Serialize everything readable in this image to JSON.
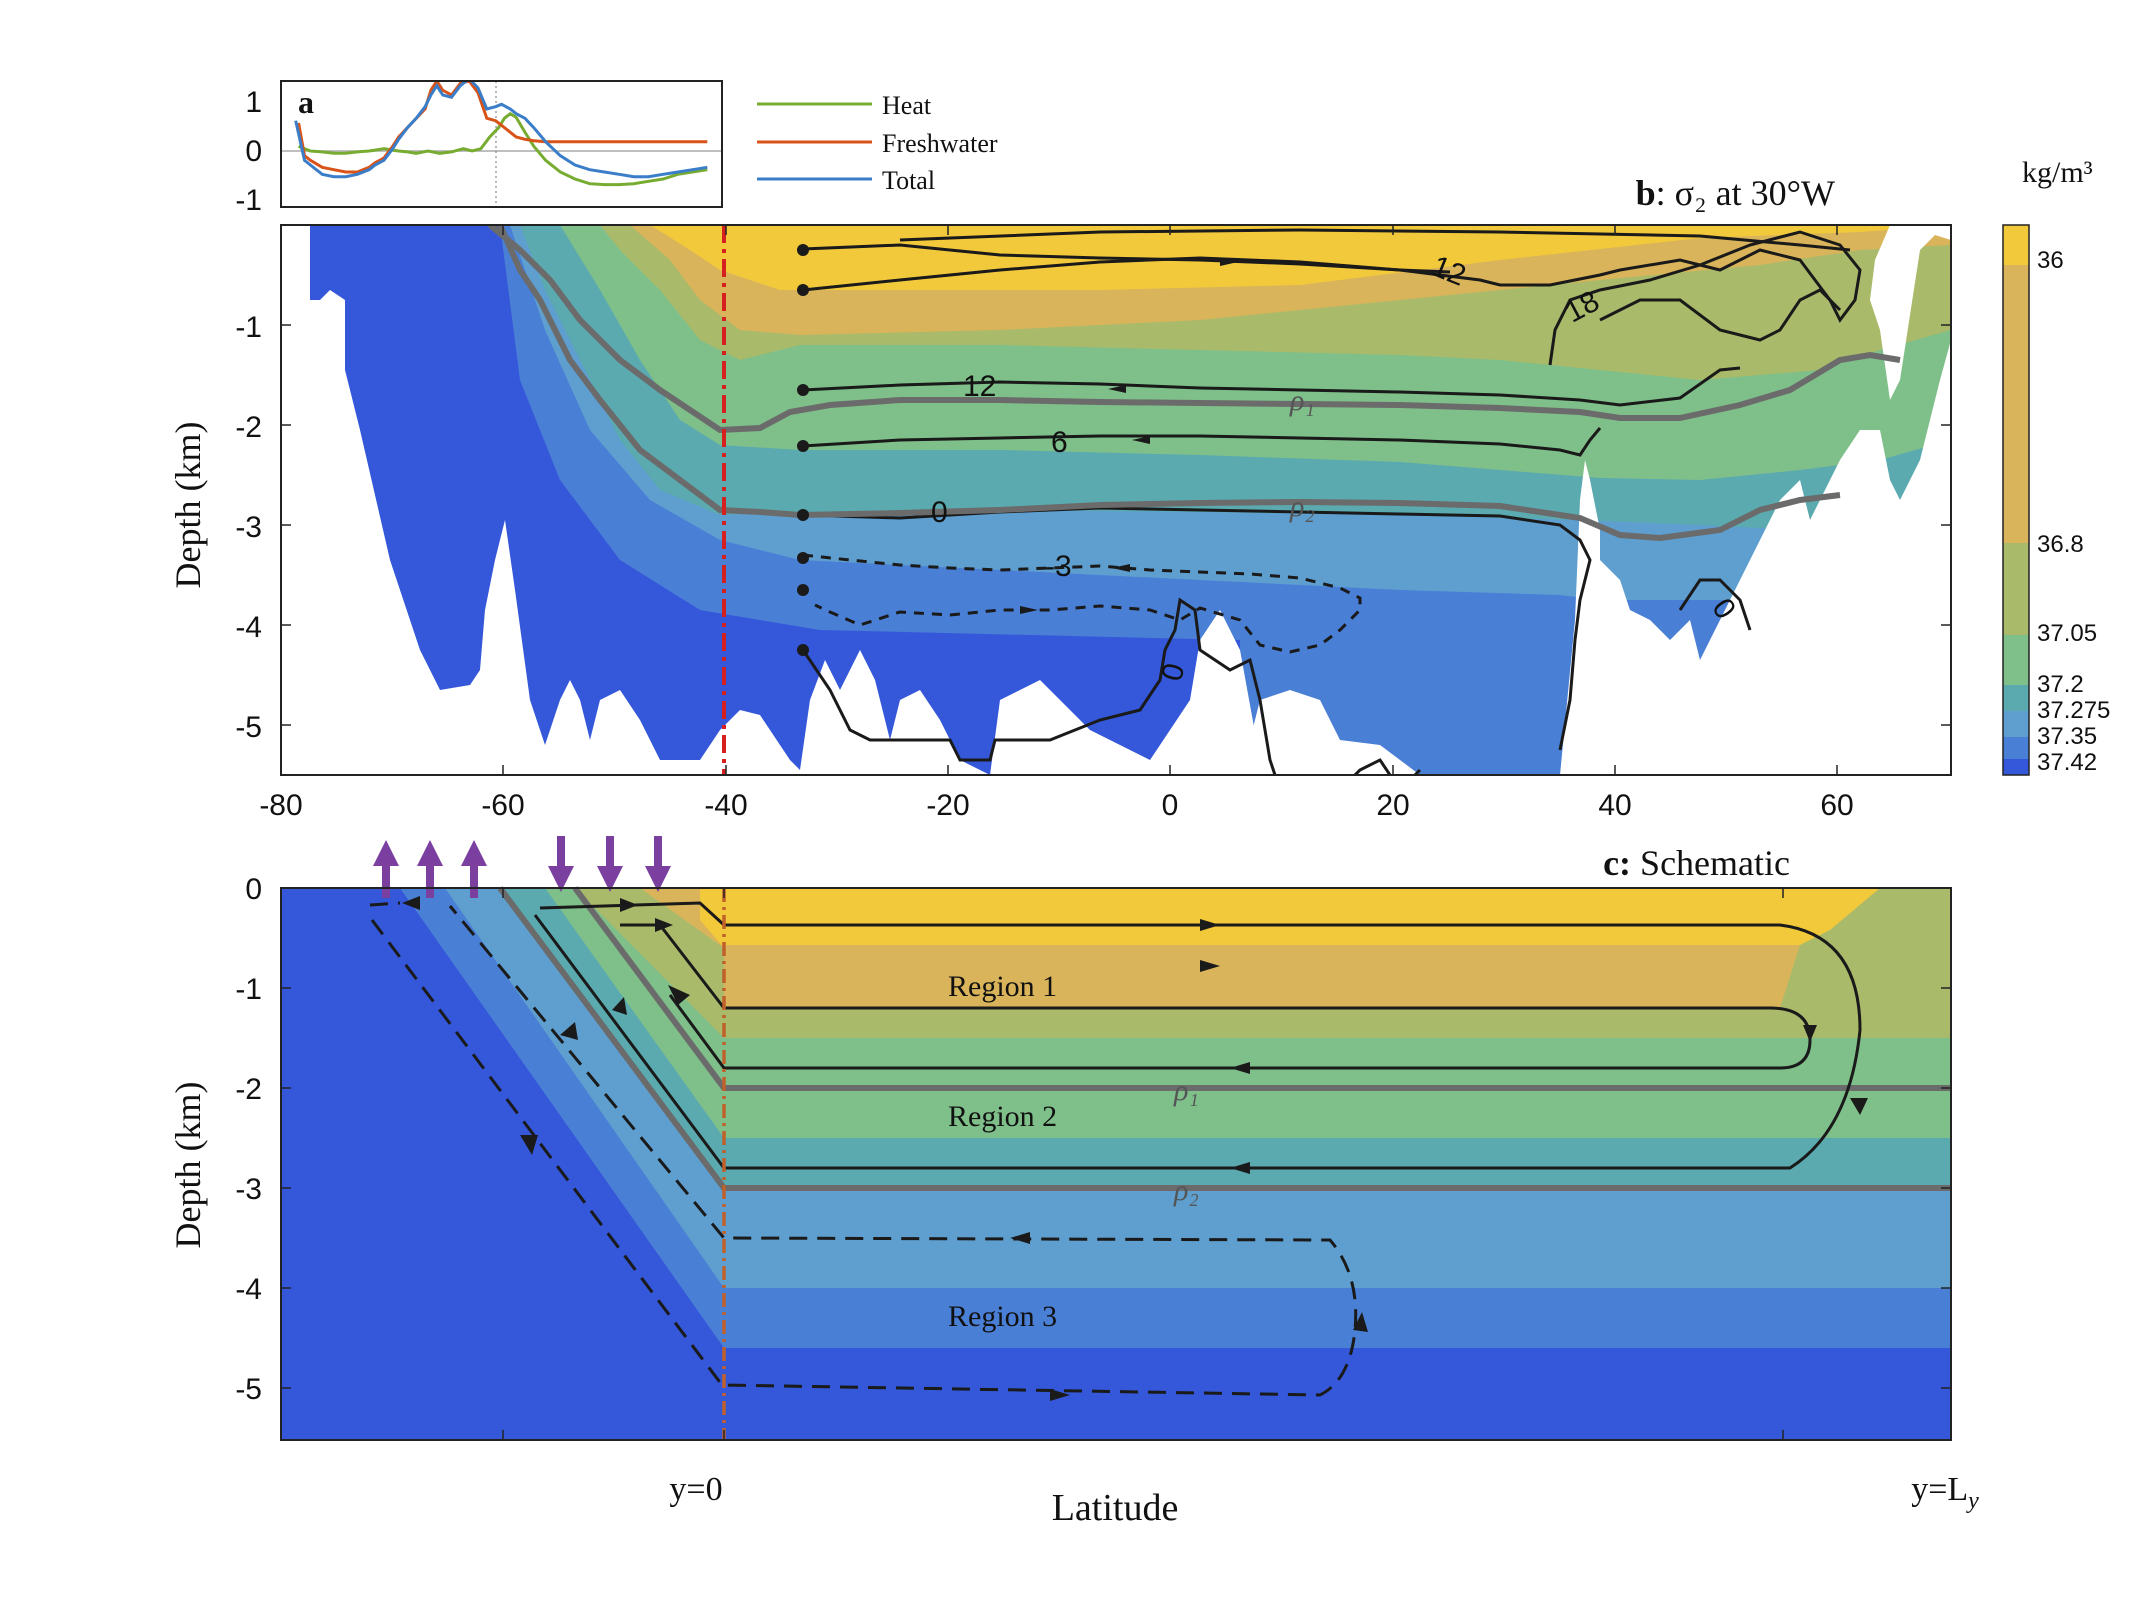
{
  "colors": {
    "heat": "#77AC30",
    "freshwater": "#D95319",
    "total": "#3A7DC9",
    "dashed_outline": "#1a1a1a",
    "contour": "#1a1a1a",
    "isopycnal": "#6b6b6b",
    "equator_marker": "#d62020",
    "schematic_marker": "#c0602a",
    "forcing_arrows": "#7b3fa0",
    "density_palette": [
      "#F2C93B",
      "#D9B45A",
      "#A9BB6A",
      "#7FBF8A",
      "#5AAAB0",
      "#5E9FD0",
      "#4A7FD6",
      "#3558DA"
    ]
  },
  "chart_data": [
    {
      "panel": "a",
      "type": "line",
      "label": "a",
      "x_domain": [
        -80,
        70
      ],
      "ylim": [
        -1.3,
        1.4
      ],
      "yticks": [
        "1",
        "0",
        "-1"
      ],
      "zero_line": true,
      "series": [
        {
          "name": "Heat",
          "color_key": "heat",
          "x": [
            -74,
            -72,
            -70,
            -66,
            -62,
            -58,
            -54,
            -50,
            -48,
            -45,
            -42,
            -40,
            -37,
            -34,
            -30,
            -26,
            -22,
            -18,
            -15,
            -12,
            -9,
            -6,
            -4,
            -2,
            0,
            3,
            6,
            10,
            15,
            20,
            25,
            30,
            35,
            40,
            45,
            50,
            55,
            60,
            65
          ],
          "y": [
            0.0,
            -0.05,
            -0.1,
            -0.12,
            -0.15,
            -0.15,
            -0.12,
            -0.1,
            -0.08,
            -0.05,
            -0.08,
            -0.1,
            -0.12,
            -0.15,
            -0.1,
            -0.15,
            -0.12,
            -0.05,
            -0.1,
            -0.05,
            0.2,
            0.4,
            0.6,
            0.7,
            0.62,
            0.3,
            0.0,
            -0.3,
            -0.55,
            -0.7,
            -0.8,
            -0.82,
            -0.82,
            -0.8,
            -0.75,
            -0.7,
            -0.6,
            -0.55,
            -0.5
          ]
        },
        {
          "name": "Freshwater",
          "color_key": "freshwater",
          "x": [
            -74,
            -72,
            -70,
            -66,
            -62,
            -58,
            -54,
            -50,
            -48,
            -45,
            -42,
            -40,
            -37,
            -34,
            -31,
            -29,
            -27,
            -25,
            -22,
            -19,
            -16,
            -13,
            -10,
            -7,
            -5,
            -2,
            0,
            3,
            6,
            10,
            15,
            20,
            25,
            30,
            35,
            40,
            45,
            50,
            55,
            60,
            65
          ],
          "y": [
            0.5,
            -0.2,
            -0.3,
            -0.45,
            -0.5,
            -0.55,
            -0.55,
            -0.45,
            -0.35,
            -0.25,
            0.0,
            0.2,
            0.4,
            0.6,
            0.8,
            1.2,
            1.4,
            1.2,
            1.1,
            1.35,
            1.4,
            1.15,
            0.6,
            0.55,
            0.45,
            0.3,
            0.2,
            0.15,
            0.12,
            0.1,
            0.1,
            0.1,
            0.1,
            0.1,
            0.1,
            0.1,
            0.1,
            0.1,
            0.1,
            0.1,
            0.1
          ]
        },
        {
          "name": "Total",
          "color_key": "total",
          "x": [
            -75,
            -72,
            -70,
            -66,
            -62,
            -58,
            -54,
            -50,
            -48,
            -45,
            -42,
            -40,
            -37,
            -34,
            -31,
            -29,
            -27,
            -25,
            -22,
            -19,
            -16,
            -13,
            -10,
            -7,
            -5,
            -2,
            0,
            3,
            6,
            10,
            15,
            20,
            25,
            30,
            35,
            40,
            45,
            50,
            55,
            60,
            65
          ],
          "y": [
            0.55,
            -0.3,
            -0.4,
            -0.6,
            -0.65,
            -0.65,
            -0.6,
            -0.5,
            -0.4,
            -0.3,
            -0.05,
            0.15,
            0.4,
            0.6,
            0.85,
            1.1,
            1.3,
            1.1,
            1.05,
            1.3,
            1.45,
            1.25,
            0.8,
            0.85,
            0.9,
            0.8,
            0.7,
            0.6,
            0.4,
            0.1,
            -0.2,
            -0.4,
            -0.5,
            -0.55,
            -0.6,
            -0.65,
            -0.65,
            -0.6,
            -0.55,
            -0.5,
            -0.45
          ]
        }
      ],
      "legend": [
        "Heat",
        "Freshwater",
        "Total"
      ]
    },
    {
      "panel": "b",
      "type": "heatmap",
      "title_bold": "b",
      "title_rest": ": σ₂ at 30°W",
      "xlim": [
        -80,
        70
      ],
      "ylim": [
        -5.5,
        0
      ],
      "xticks": [
        "-80",
        "-60",
        "-40",
        "-20",
        "0",
        "20",
        "40",
        "60"
      ],
      "yticks": [
        "-1",
        "-2",
        "-3",
        "-4",
        "-5"
      ],
      "ylabel": "Depth (km)",
      "colorbar": {
        "unit": "kg/m³",
        "levels": [
          "36",
          "36.8",
          "37.05",
          "37.2",
          "37.275",
          "37.35",
          "37.42"
        ]
      },
      "contour_labels": [
        "12",
        "18",
        "12",
        "6",
        "0",
        "-3",
        "0",
        "0"
      ],
      "isopycnal_labels": [
        "ρ₁",
        "ρ₂"
      ],
      "reference_latitude": -40
    },
    {
      "panel": "c",
      "type": "heatmap",
      "title_bold": "c:",
      "title_rest": " Schematic",
      "ylim": [
        -5.5,
        0
      ],
      "yticks": [
        "0",
        "-1",
        "-2",
        "-3",
        "-4",
        "-5"
      ],
      "ylabel": "Depth (km)",
      "xlabel": "Latitude",
      "x_labels": [
        "y=0",
        "y=L"
      ],
      "x_label_subscript": "y",
      "regions": [
        "Region 1",
        "Region 2",
        "Region 3"
      ],
      "isopycnal_labels": [
        "ρ₁",
        "ρ₂"
      ],
      "isopycnal_depths": [
        -2.0,
        -3.0
      ]
    }
  ]
}
